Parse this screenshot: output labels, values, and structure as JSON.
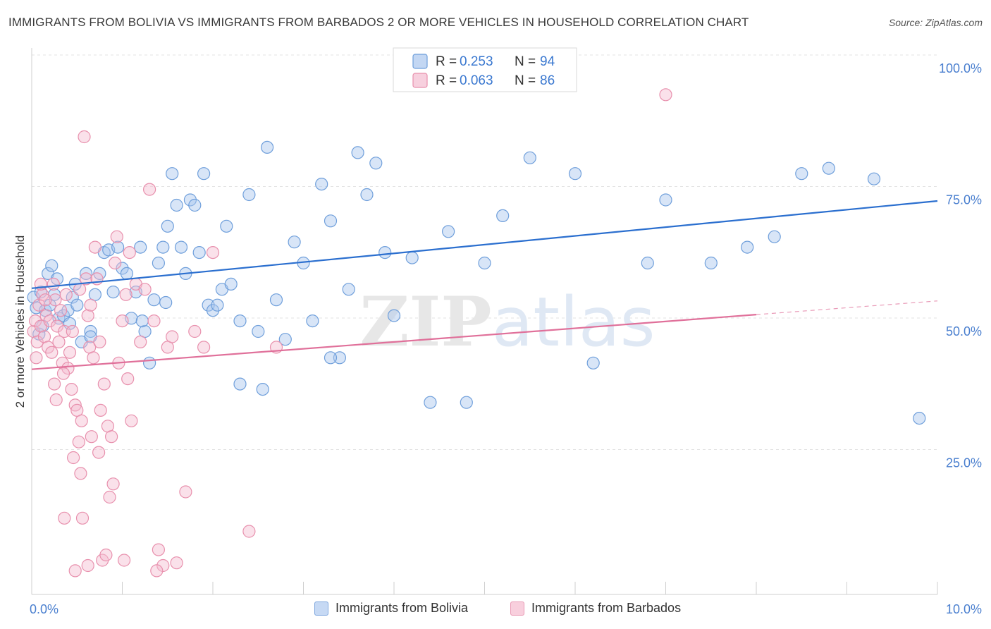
{
  "chart_data": {
    "type": "scatter",
    "title": "IMMIGRANTS FROM BOLIVIA VS IMMIGRANTS FROM BARBADOS 2 OR MORE VEHICLES IN HOUSEHOLD CORRELATION CHART",
    "source": "Source: ZipAtlas.com",
    "ylabel": "2 or more Vehicles in Household",
    "xlabel": "",
    "xlim": [
      0,
      10
    ],
    "ylim": [
      0,
      100
    ],
    "x_tick_labels": [
      "0.0%",
      "10.0%"
    ],
    "y_tick_labels": [
      "100.0%",
      "75.0%",
      "50.0%",
      "25.0%"
    ],
    "y_ticks": [
      100,
      75,
      50,
      25
    ],
    "grid": true,
    "watermark": "ZIPatlas",
    "legend_stats": [
      {
        "r_label": "R =",
        "r_value": "0.253",
        "n_label": "N =",
        "n_value": "94"
      },
      {
        "r_label": "R =",
        "r_value": "0.063",
        "n_label": "N =",
        "n_value": "86"
      }
    ],
    "series": [
      {
        "name": "Immigrants from Bolivia",
        "color": "#6f9fdb",
        "fill": "#a9c6ee",
        "line_color": "#2b6fcf",
        "trend": {
          "x": [
            0,
            10
          ],
          "y": [
            58.2,
            74.8
          ]
        },
        "points": [
          [
            0.02,
            56.5
          ],
          [
            0.05,
            54.5
          ],
          [
            0.08,
            49.5
          ],
          [
            0.1,
            57.5
          ],
          [
            0.12,
            51
          ],
          [
            0.15,
            54
          ],
          [
            0.18,
            61
          ],
          [
            0.2,
            55
          ],
          [
            0.22,
            62.5
          ],
          [
            0.25,
            57
          ],
          [
            0.28,
            60
          ],
          [
            0.3,
            52.5
          ],
          [
            0.35,
            53
          ],
          [
            0.4,
            54
          ],
          [
            0.42,
            51.5
          ],
          [
            0.45,
            56.5
          ],
          [
            0.48,
            59
          ],
          [
            0.5,
            55
          ],
          [
            0.55,
            48
          ],
          [
            0.6,
            61
          ],
          [
            0.65,
            50
          ],
          [
            0.7,
            57
          ],
          [
            0.75,
            61
          ],
          [
            0.8,
            65
          ],
          [
            0.85,
            65.5
          ],
          [
            0.9,
            57.5
          ],
          [
            0.95,
            66
          ],
          [
            1.0,
            62
          ],
          [
            1.05,
            61
          ],
          [
            1.1,
            52.5
          ],
          [
            1.15,
            57.5
          ],
          [
            1.2,
            66
          ],
          [
            1.25,
            50
          ],
          [
            1.3,
            44
          ],
          [
            1.35,
            56
          ],
          [
            1.4,
            63
          ],
          [
            1.45,
            66
          ],
          [
            1.5,
            70
          ],
          [
            1.55,
            80
          ],
          [
            1.6,
            74
          ],
          [
            1.65,
            66
          ],
          [
            1.7,
            61
          ],
          [
            1.75,
            75
          ],
          [
            1.8,
            74
          ],
          [
            1.85,
            65
          ],
          [
            1.9,
            80
          ],
          [
            1.95,
            55
          ],
          [
            2.0,
            54
          ],
          [
            2.05,
            55
          ],
          [
            2.1,
            58
          ],
          [
            2.15,
            70
          ],
          [
            2.2,
            59
          ],
          [
            2.3,
            52
          ],
          [
            2.4,
            76
          ],
          [
            2.5,
            50
          ],
          [
            2.6,
            85
          ],
          [
            2.7,
            56
          ],
          [
            2.8,
            48.5
          ],
          [
            2.9,
            67
          ],
          [
            3.0,
            63
          ],
          [
            3.1,
            52
          ],
          [
            3.2,
            78
          ],
          [
            3.3,
            71
          ],
          [
            3.4,
            45
          ],
          [
            3.5,
            58
          ],
          [
            3.6,
            84
          ],
          [
            3.7,
            76
          ],
          [
            3.8,
            82
          ],
          [
            3.9,
            65
          ],
          [
            4.0,
            53
          ],
          [
            4.2,
            64
          ],
          [
            4.4,
            36.5
          ],
          [
            4.6,
            69
          ],
          [
            4.8,
            36.5
          ],
          [
            5.0,
            63
          ],
          [
            5.2,
            72
          ],
          [
            5.5,
            83
          ],
          [
            6.0,
            80
          ],
          [
            6.2,
            44
          ],
          [
            6.8,
            63
          ],
          [
            7.0,
            75
          ],
          [
            7.5,
            63
          ],
          [
            7.9,
            66
          ],
          [
            8.2,
            68
          ],
          [
            8.5,
            80
          ],
          [
            8.8,
            81
          ],
          [
            9.3,
            79
          ],
          [
            9.8,
            33.5
          ],
          [
            1.22,
            52
          ],
          [
            1.48,
            55.5
          ],
          [
            0.65,
            49
          ],
          [
            2.3,
            40
          ],
          [
            2.55,
            39
          ],
          [
            3.3,
            45
          ]
        ]
      },
      {
        "name": "Immigrants from Barbados",
        "color": "#e890ad",
        "fill": "#f4bcd0",
        "line_color": "#e0709a",
        "trend": {
          "x": [
            0,
            8.0
          ],
          "y": [
            42.8,
            53.2
          ]
        },
        "trend_dashed": {
          "x": [
            8.0,
            10
          ],
          "y": [
            53.2,
            55.8
          ]
        },
        "points": [
          [
            0.02,
            50
          ],
          [
            0.04,
            52
          ],
          [
            0.06,
            48
          ],
          [
            0.08,
            55
          ],
          [
            0.1,
            51
          ],
          [
            0.12,
            57
          ],
          [
            0.14,
            49
          ],
          [
            0.16,
            53
          ],
          [
            0.18,
            47
          ],
          [
            0.2,
            52
          ],
          [
            0.22,
            46
          ],
          [
            0.24,
            59
          ],
          [
            0.26,
            56
          ],
          [
            0.28,
            51
          ],
          [
            0.3,
            48
          ],
          [
            0.32,
            54
          ],
          [
            0.34,
            44
          ],
          [
            0.36,
            50
          ],
          [
            0.38,
            57
          ],
          [
            0.4,
            43
          ],
          [
            0.42,
            46
          ],
          [
            0.44,
            39
          ],
          [
            0.46,
            26
          ],
          [
            0.48,
            36
          ],
          [
            0.5,
            35
          ],
          [
            0.52,
            29
          ],
          [
            0.54,
            23
          ],
          [
            0.56,
            14.5
          ],
          [
            0.58,
            87
          ],
          [
            0.6,
            60
          ],
          [
            0.62,
            53
          ],
          [
            0.64,
            47
          ],
          [
            0.66,
            30
          ],
          [
            0.68,
            45
          ],
          [
            0.7,
            66
          ],
          [
            0.72,
            60
          ],
          [
            0.74,
            27
          ],
          [
            0.76,
            35
          ],
          [
            0.78,
            6.5
          ],
          [
            0.8,
            40
          ],
          [
            0.82,
            7.5
          ],
          [
            0.84,
            32
          ],
          [
            0.86,
            18.5
          ],
          [
            0.88,
            30
          ],
          [
            0.9,
            21
          ],
          [
            0.92,
            63
          ],
          [
            0.94,
            68
          ],
          [
            0.96,
            44
          ],
          [
            1.0,
            52
          ],
          [
            1.02,
            6.5
          ],
          [
            1.04,
            57
          ],
          [
            1.06,
            41
          ],
          [
            1.08,
            65
          ],
          [
            1.1,
            33
          ],
          [
            1.15,
            59
          ],
          [
            1.2,
            48
          ],
          [
            1.25,
            58
          ],
          [
            1.3,
            77
          ],
          [
            1.35,
            52
          ],
          [
            1.4,
            8.5
          ],
          [
            1.45,
            5.5
          ],
          [
            1.5,
            47
          ],
          [
            1.55,
            49
          ],
          [
            1.6,
            6
          ],
          [
            1.7,
            19.5
          ],
          [
            1.8,
            50
          ],
          [
            1.9,
            47
          ],
          [
            2.0,
            65
          ],
          [
            2.4,
            12
          ],
          [
            2.7,
            47
          ],
          [
            7.0,
            95
          ],
          [
            0.55,
            33
          ],
          [
            0.35,
            42
          ],
          [
            0.45,
            50
          ],
          [
            0.15,
            56
          ],
          [
            0.25,
            40
          ],
          [
            0.05,
            45
          ],
          [
            0.1,
            59
          ],
          [
            0.65,
            55
          ],
          [
            0.75,
            48
          ],
          [
            1.38,
            4.5
          ],
          [
            0.36,
            14.5
          ],
          [
            0.48,
            4.5
          ],
          [
            0.62,
            5.5
          ],
          [
            0.53,
            58
          ],
          [
            0.27,
            37
          ]
        ]
      }
    ]
  },
  "legend_bottom": {
    "bolivia_label": "Immigrants from Bolivia",
    "barbados_label": "Immigrants from Barbados"
  }
}
